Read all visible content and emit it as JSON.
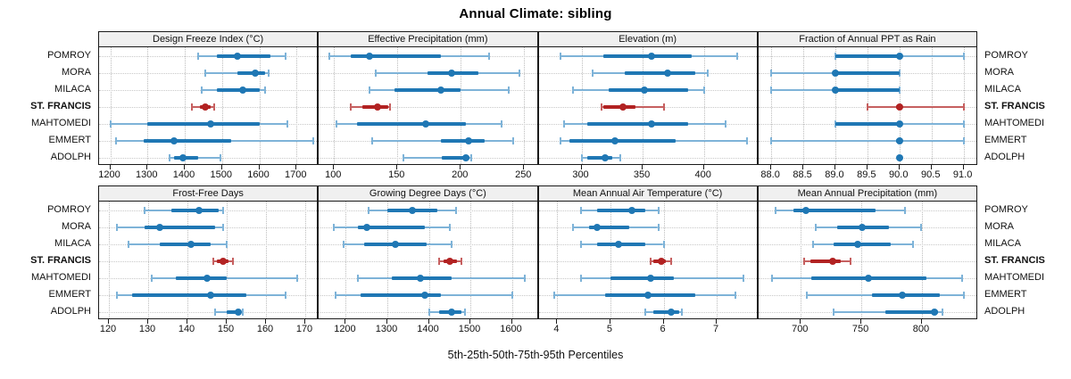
{
  "title": "Annual Climate: sibling",
  "footer": {
    "xlabel": "5th-25th-50th-75th-95th Percentiles"
  },
  "sites": [
    "POMROY",
    "MORA",
    "MILACA",
    "ST. FRANCIS",
    "MAHTOMEDI",
    "EMMERT",
    "ADOLPH"
  ],
  "highlight_site": "ST. FRANCIS",
  "colors": {
    "series": "#1f77b4",
    "series_light": "#7eb3d8",
    "highlight": "#b22222",
    "highlight_light": "#c66060",
    "strip_bg": "#f0f0f0",
    "panel_border": "#1a1a1a",
    "grid": "#bdbdbd"
  },
  "chart_data": {
    "type": "scatter",
    "subtype": "percentile-interval-dotplot",
    "percentile_labels": [
      "5th",
      "25th",
      "50th",
      "75th",
      "95th"
    ],
    "xlabel": "5th-25th-50th-75th-95th Percentiles",
    "grid": "dotted",
    "panels": [
      {
        "title": "Design Freeze Index (°C)",
        "ticks": [
          1200,
          1300,
          1400,
          1500,
          1600,
          1700
        ],
        "xlim": [
          1170,
          1755
        ],
        "series": [
          {
            "name": "POMROY",
            "percentiles": [
              1435,
              1485,
              1540,
              1630,
              1670
            ]
          },
          {
            "name": "MORA",
            "percentiles": [
              1455,
              1540,
              1590,
              1615,
              1625
            ]
          },
          {
            "name": "MILACA",
            "percentiles": [
              1445,
              1485,
              1555,
              1600,
              1615
            ]
          },
          {
            "name": "ST. FRANCIS",
            "percentiles": [
              1420,
              1440,
              1455,
              1470,
              1480
            ]
          },
          {
            "name": "MAHTOMEDI",
            "percentiles": [
              1200,
              1300,
              1470,
              1600,
              1675
            ]
          },
          {
            "name": "EMMERT",
            "percentiles": [
              1215,
              1290,
              1370,
              1525,
              1745
            ]
          },
          {
            "name": "ADOLPH",
            "percentiles": [
              1360,
              1370,
              1395,
              1435,
              1495
            ]
          }
        ]
      },
      {
        "title": "Effective Precipitation (mm)",
        "ticks": [
          100,
          150,
          200,
          250
        ],
        "xlim": [
          88,
          260
        ],
        "series": [
          {
            "name": "POMROY",
            "percentiles": [
              96,
              113,
              128,
              184,
              222
            ]
          },
          {
            "name": "MORA",
            "percentiles": [
              133,
              174,
              193,
              214,
              246
            ]
          },
          {
            "name": "MILACA",
            "percentiles": [
              128,
              148,
              184,
              200,
              238
            ]
          },
          {
            "name": "ST. FRANCIS",
            "percentiles": [
              113,
              122,
              134,
              143,
              144
            ]
          },
          {
            "name": "MAHTOMEDI",
            "percentiles": [
              102,
              118,
              172,
              204,
              232
            ]
          },
          {
            "name": "EMMERT",
            "percentiles": [
              130,
              184,
              206,
              219,
              241
            ]
          },
          {
            "name": "ADOLPH",
            "percentiles": [
              155,
              185,
              204,
              207,
              208
            ]
          }
        ]
      },
      {
        "title": "Elevation (m)",
        "ticks": [
          300,
          350,
          400
        ],
        "xlim": [
          265,
          443
        ],
        "series": [
          {
            "name": "POMROY",
            "percentiles": [
              283,
              318,
              357,
              390,
              427
            ]
          },
          {
            "name": "MORA",
            "percentiles": [
              309,
              335,
              370,
              393,
              403
            ]
          },
          {
            "name": "MILACA",
            "percentiles": [
              293,
              322,
              351,
              387,
              400
            ]
          },
          {
            "name": "ST. FRANCIS",
            "percentiles": [
              316,
              318,
              334,
              344,
              367
            ]
          },
          {
            "name": "MAHTOMEDI",
            "percentiles": [
              286,
              305,
              357,
              387,
              418
            ]
          },
          {
            "name": "EMMERT",
            "percentiles": [
              283,
              290,
              327,
              377,
              435
            ]
          },
          {
            "name": "ADOLPH",
            "percentiles": [
              300,
              305,
              319,
              325,
              332
            ]
          }
        ]
      },
      {
        "title": "Fraction of Annual PPT as Rain",
        "ticks": [
          88.0,
          88.5,
          89.0,
          89.5,
          90.0,
          90.5,
          91.0
        ],
        "tick_decimals": 1,
        "xlim": [
          87.8,
          91.2
        ],
        "series": [
          {
            "name": "POMROY",
            "percentiles": [
              89.0,
              89.0,
              90.0,
              90.0,
              91.0
            ]
          },
          {
            "name": "MORA",
            "percentiles": [
              88.0,
              89.0,
              89.0,
              90.0,
              90.0
            ]
          },
          {
            "name": "MILACA",
            "percentiles": [
              88.0,
              89.0,
              89.0,
              90.0,
              90.0
            ]
          },
          {
            "name": "ST. FRANCIS",
            "percentiles": [
              89.5,
              89.95,
              90.0,
              90.05,
              91.0
            ]
          },
          {
            "name": "MAHTOMEDI",
            "percentiles": [
              89.0,
              89.0,
              90.0,
              90.0,
              91.0
            ]
          },
          {
            "name": "EMMERT",
            "percentiles": [
              88.0,
              89.95,
              90.0,
              90.05,
              91.0
            ]
          },
          {
            "name": "ADOLPH",
            "percentiles": [
              90.0,
              90.0,
              90.0,
              90.0,
              90.0
            ]
          }
        ]
      },
      {
        "title": "Frost-Free Days",
        "ticks": [
          120,
          130,
          140,
          150,
          160,
          170
        ],
        "xlim": [
          117.5,
          173
        ],
        "series": [
          {
            "name": "POMROY",
            "percentiles": [
              129,
              136,
              143,
              148,
              149
            ]
          },
          {
            "name": "MORA",
            "percentiles": [
              122,
              129,
              133,
              147,
              149
            ]
          },
          {
            "name": "MILACA",
            "percentiles": [
              125,
              133,
              141,
              146,
              150
            ]
          },
          {
            "name": "ST. FRANCIS",
            "percentiles": [
              146.5,
              147.5,
              149,
              150.5,
              151.5
            ]
          },
          {
            "name": "MAHTOMEDI",
            "percentiles": [
              131,
              137,
              145,
              150,
              168
            ]
          },
          {
            "name": "EMMERT",
            "percentiles": [
              122,
              126,
              146,
              155,
              165
            ]
          },
          {
            "name": "ADOLPH",
            "percentiles": [
              147,
              150,
              153,
              153.5,
              154
            ]
          }
        ]
      },
      {
        "title": "Growing Degree Days (°C)",
        "ticks": [
          1200,
          1300,
          1400,
          1500,
          1600
        ],
        "xlim": [
          1135,
          1660
        ],
        "series": [
          {
            "name": "POMROY",
            "percentiles": [
              1255,
              1300,
              1360,
              1420,
              1465
            ]
          },
          {
            "name": "MORA",
            "percentiles": [
              1170,
              1230,
              1250,
              1390,
              1450
            ]
          },
          {
            "name": "MILACA",
            "percentiles": [
              1195,
              1245,
              1320,
              1395,
              1455
            ]
          },
          {
            "name": "ST. FRANCIS",
            "percentiles": [
              1425,
              1435,
              1450,
              1468,
              1478
            ]
          },
          {
            "name": "MAHTOMEDI",
            "percentiles": [
              1230,
              1310,
              1380,
              1455,
              1630
            ]
          },
          {
            "name": "EMMERT",
            "percentiles": [
              1175,
              1235,
              1390,
              1430,
              1600
            ]
          },
          {
            "name": "ADOLPH",
            "percentiles": [
              1400,
              1425,
              1455,
              1478,
              1487
            ]
          }
        ]
      },
      {
        "title": "Mean Annual Air Temperature (°C)",
        "ticks": [
          4,
          5,
          6,
          7
        ],
        "xlim": [
          3.65,
          7.75
        ],
        "series": [
          {
            "name": "POMROY",
            "percentiles": [
              4.45,
              4.75,
              5.4,
              5.65,
              5.9
            ]
          },
          {
            "name": "MORA",
            "percentiles": [
              4.3,
              4.6,
              4.75,
              5.35,
              5.9
            ]
          },
          {
            "name": "MILACA",
            "percentiles": [
              4.45,
              4.75,
              5.15,
              5.65,
              6.0
            ]
          },
          {
            "name": "ST. FRANCIS",
            "percentiles": [
              5.75,
              5.8,
              5.95,
              6.05,
              6.15
            ]
          },
          {
            "name": "MAHTOMEDI",
            "percentiles": [
              4.45,
              5.0,
              5.75,
              6.2,
              7.5
            ]
          },
          {
            "name": "EMMERT",
            "percentiles": [
              3.95,
              4.9,
              5.7,
              6.6,
              7.35
            ]
          },
          {
            "name": "ADOLPH",
            "percentiles": [
              5.65,
              5.8,
              6.15,
              6.3,
              6.35
            ]
          }
        ]
      },
      {
        "title": "Mean Annual Precipitation (mm)",
        "ticks": [
          700,
          750,
          800
        ],
        "xlim": [
          665,
          845
        ],
        "series": [
          {
            "name": "POMROY",
            "percentiles": [
              679,
              694,
              704,
              762,
              786
            ]
          },
          {
            "name": "MORA",
            "percentiles": [
              712,
              730,
              751,
              773,
              799
            ]
          },
          {
            "name": "MILACA",
            "percentiles": [
              710,
              727,
              747,
              774,
              793
            ]
          },
          {
            "name": "ST. FRANCIS",
            "percentiles": [
              703,
              708,
              726,
              733,
              741
            ]
          },
          {
            "name": "MAHTOMEDI",
            "percentiles": [
              676,
              709,
              756,
              804,
              833
            ]
          },
          {
            "name": "EMMERT",
            "percentiles": [
              705,
              759,
              784,
              815,
              835
            ]
          },
          {
            "name": "ADOLPH",
            "percentiles": [
              727,
              770,
              810,
              813,
              817
            ]
          }
        ]
      }
    ]
  }
}
